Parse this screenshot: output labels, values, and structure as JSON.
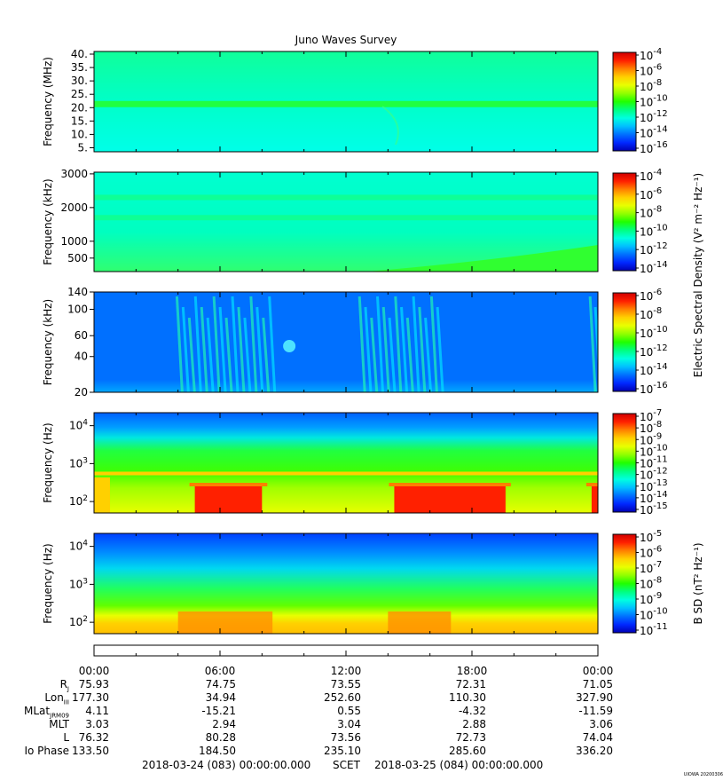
{
  "title": "Juno Waves Survey",
  "stamp": "UIOWA 20200306",
  "colors": {
    "background": "#ffffff",
    "colormap": [
      "#0000b4",
      "#0028ff",
      "#0070ff",
      "#00c0ff",
      "#00ffe0",
      "#00ff80",
      "#20ff00",
      "#90ff00",
      "#e8ff00",
      "#ffd000",
      "#ff8000",
      "#ff2000",
      "#d00000"
    ]
  },
  "panels": [
    {
      "id": "hf-mhz",
      "ylabel": "Frequency (MHz)",
      "scale": "linear",
      "yrange": [
        3.5,
        41
      ],
      "yticks": [
        {
          "v": 40,
          "label": "40."
        },
        {
          "v": 35,
          "label": "35."
        },
        {
          "v": 30,
          "label": "30."
        },
        {
          "v": 25,
          "label": "25."
        },
        {
          "v": 20,
          "label": "20."
        },
        {
          "v": 15,
          "label": "15."
        },
        {
          "v": 10,
          "label": "10."
        },
        {
          "v": 5,
          "label": "5."
        }
      ],
      "cbar": [
        {
          "exp": "-4"
        },
        {
          "exp": "-6"
        },
        {
          "exp": "-8"
        },
        {
          "exp": "-10"
        },
        {
          "exp": "-12"
        },
        {
          "exp": "-14"
        },
        {
          "exp": "-16"
        }
      ],
      "cbar_label": ""
    },
    {
      "id": "hf-khz",
      "ylabel": "Frequency (kHz)",
      "scale": "linear",
      "yrange": [
        100,
        3050
      ],
      "yticks": [
        {
          "v": 3000,
          "label": "3000"
        },
        {
          "v": 2000,
          "label": "2000"
        },
        {
          "v": 1000,
          "label": "1000"
        },
        {
          "v": 500,
          "label": "500"
        }
      ],
      "cbar": [
        {
          "exp": "-4"
        },
        {
          "exp": "-6"
        },
        {
          "exp": "-8"
        },
        {
          "exp": "-10"
        },
        {
          "exp": "-12"
        },
        {
          "exp": "-14"
        }
      ],
      "cbar_label": "Electric Spectral Density (V² m⁻² Hz⁻¹)"
    },
    {
      "id": "lf-khz",
      "ylabel": "Frequency (kHz)",
      "scale": "log",
      "yrange": [
        20,
        140
      ],
      "yticks": [
        {
          "v": 140,
          "label": "140"
        },
        {
          "v": 100,
          "label": "100"
        },
        {
          "v": 60,
          "label": "60"
        },
        {
          "v": 40,
          "label": "40"
        },
        {
          "v": 20,
          "label": "20"
        }
      ],
      "cbar": [
        {
          "exp": "-6"
        },
        {
          "exp": "-8"
        },
        {
          "exp": "-10"
        },
        {
          "exp": "-12"
        },
        {
          "exp": "-14"
        },
        {
          "exp": "-16"
        }
      ],
      "cbar_label": ""
    },
    {
      "id": "e-lfr",
      "ylabel": "Frequency (Hz)",
      "scale": "log",
      "yrange": [
        50,
        22000
      ],
      "yticks": [
        {
          "v": 10000,
          "label": "10",
          "exp": "4"
        },
        {
          "v": 1000,
          "label": "10",
          "exp": "3"
        },
        {
          "v": 100,
          "label": "10",
          "exp": "2"
        }
      ],
      "cbar": [
        {
          "exp": "-7"
        },
        {
          "exp": "-8"
        },
        {
          "exp": "-9"
        },
        {
          "exp": "-10"
        },
        {
          "exp": "-11"
        },
        {
          "exp": "-12"
        },
        {
          "exp": "-13"
        },
        {
          "exp": "-14"
        },
        {
          "exp": "-15"
        }
      ],
      "cbar_label": ""
    },
    {
      "id": "b-lfr",
      "ylabel": "Frequency (Hz)",
      "scale": "log",
      "yrange": [
        50,
        22000
      ],
      "yticks": [
        {
          "v": 10000,
          "label": "10",
          "exp": "4"
        },
        {
          "v": 1000,
          "label": "10",
          "exp": "3"
        },
        {
          "v": 100,
          "label": "10",
          "exp": "2"
        }
      ],
      "cbar": [
        {
          "exp": "-5"
        },
        {
          "exp": "-6"
        },
        {
          "exp": "-7"
        },
        {
          "exp": "-8"
        },
        {
          "exp": "-9"
        },
        {
          "exp": "-10"
        },
        {
          "exp": "-11"
        }
      ],
      "cbar_label": "B SD (nT² Hz⁻¹)"
    }
  ],
  "chart_data": {
    "type": "heatmap",
    "title": "Juno Waves Survey",
    "x_axis": {
      "ticks": [
        "00:00",
        "06:00",
        "12:00",
        "18:00",
        "00:00"
      ],
      "range_hours": [
        0,
        24
      ]
    },
    "series": [
      {
        "name": "Frequency (MHz)",
        "features": [
          {
            "type": "band",
            "freq": 21.5
          }
        ]
      },
      {
        "name": "Frequency (kHz)",
        "features": [
          {
            "type": "band",
            "freq": 1700
          },
          {
            "type": "band",
            "freq": 2300
          },
          {
            "type": "emission_rise",
            "hours": [
              13,
              24
            ]
          }
        ]
      },
      {
        "name": "Frequency (kHz)",
        "features": [
          {
            "type": "burst",
            "hours": [
              3.8,
              8.5
            ]
          },
          {
            "type": "burst",
            "hours": [
              12.5,
              16.5
            ]
          },
          {
            "type": "burst",
            "hours": [
              23.5,
              24
            ]
          }
        ]
      },
      {
        "name": "Frequency (Hz)",
        "features": [
          {
            "type": "intense",
            "hours": [
              4.8,
              8.0
            ]
          },
          {
            "type": "intense",
            "hours": [
              14.3,
              19.6
            ]
          },
          {
            "type": "intense",
            "hours": [
              23.7,
              24
            ]
          },
          {
            "type": "line",
            "freq": 550
          }
        ]
      },
      {
        "name": "Frequency (Hz)",
        "features": [
          {
            "type": "intense",
            "hours": [
              4,
              8.5
            ]
          },
          {
            "type": "intense",
            "hours": [
              14,
              17
            ]
          }
        ]
      }
    ]
  },
  "ephemeris": {
    "rows": [
      {
        "label": "R",
        "sub": "J",
        "values": [
          "75.93",
          "74.75",
          "73.55",
          "72.31",
          "71.05"
        ]
      },
      {
        "label": "Lon",
        "sub": "III",
        "values": [
          "177.30",
          "34.94",
          "252.60",
          "110.30",
          "327.90"
        ]
      },
      {
        "label": "MLat",
        "sub": "JRM09",
        "values": [
          "4.11",
          "-15.21",
          "0.55",
          "-4.32",
          "-11.59"
        ]
      },
      {
        "label": "MLT",
        "sub": "",
        "values": [
          "3.03",
          "2.94",
          "3.04",
          "2.88",
          "3.06"
        ]
      },
      {
        "label": "L",
        "sub": "",
        "values": [
          "76.32",
          "80.28",
          "73.56",
          "72.73",
          "74.04"
        ]
      },
      {
        "label": "Io Phase",
        "sub": "",
        "values": [
          "133.50",
          "184.50",
          "235.10",
          "285.60",
          "336.20"
        ]
      }
    ],
    "start": "2018-03-24 (083) 00:00:00.000",
    "scet": "SCET",
    "end": "2018-03-25 (084) 00:00:00.000"
  }
}
